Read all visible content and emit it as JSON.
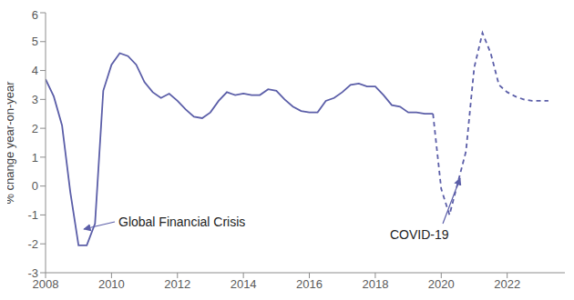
{
  "chart_data": {
    "type": "line",
    "y_label": "% change year-on-year",
    "annotations": [
      "Global Financial Crisis",
      "COVID-19"
    ],
    "x": [
      2008,
      2008.25,
      2008.5,
      2008.75,
      2009,
      2009.25,
      2009.5,
      2009.75,
      2010,
      2010.25,
      2010.5,
      2010.75,
      2011,
      2011.25,
      2011.5,
      2011.75,
      2012,
      2012.25,
      2012.5,
      2012.75,
      2013,
      2013.25,
      2013.5,
      2013.75,
      2014,
      2014.25,
      2014.5,
      2014.75,
      2015,
      2015.25,
      2015.5,
      2015.75,
      2016,
      2016.25,
      2016.5,
      2016.75,
      2017,
      2017.25,
      2017.5,
      2017.75,
      2018,
      2018.25,
      2018.5,
      2018.75,
      2019,
      2019.25,
      2019.5,
      2019.75,
      2020,
      2020.25,
      2020.5,
      2020.75,
      2021,
      2021.25,
      2021.5,
      2021.75,
      2022,
      2022.25,
      2022.5,
      2022.75,
      2023,
      2023.25
    ],
    "series": [
      {
        "color": "#5b5ea8",
        "line_style": "solid",
        "values": [
          3.7,
          3.1,
          2.1,
          -0.2,
          -2.05,
          -2.05,
          -1.3,
          3.3,
          4.2,
          4.6,
          4.5,
          4.2,
          3.6,
          3.25,
          3.05,
          3.2,
          2.95,
          2.65,
          2.4,
          2.35,
          2.55,
          2.95,
          3.25,
          3.15,
          3.2,
          3.15,
          3.15,
          3.35,
          3.3,
          3.0,
          2.75,
          2.6,
          2.55,
          2.55,
          2.95,
          3.05,
          3.25,
          3.5,
          3.55,
          3.45,
          3.45,
          3.15,
          2.8,
          2.75,
          2.55,
          2.55,
          2.5,
          2.5,
          null,
          null,
          null,
          null,
          null,
          null,
          null,
          null,
          null,
          null,
          null,
          null,
          null,
          null
        ]
      },
      {
        "color": "#5b5ea8",
        "line_style": "dashed",
        "values": [
          null,
          null,
          null,
          null,
          null,
          null,
          null,
          null,
          null,
          null,
          null,
          null,
          null,
          null,
          null,
          null,
          null,
          null,
          null,
          null,
          null,
          null,
          null,
          null,
          null,
          null,
          null,
          null,
          null,
          null,
          null,
          null,
          null,
          null,
          null,
          null,
          null,
          null,
          null,
          null,
          null,
          null,
          null,
          null,
          null,
          null,
          null,
          2.5,
          -0.1,
          -1.0,
          0.1,
          1.2,
          4.1,
          5.3,
          4.6,
          3.5,
          3.25,
          3.1,
          3.0,
          2.95,
          2.95,
          2.95
        ]
      }
    ],
    "xlim": [
      2008,
      2023.75
    ],
    "xticks": [
      2008,
      2010,
      2012,
      2014,
      2016,
      2018,
      2020,
      2022
    ],
    "ylim": [
      -3,
      6
    ],
    "yticks": [
      -3,
      -2,
      -1,
      0,
      1,
      2,
      3,
      4,
      5,
      6
    ],
    "grid": false
  }
}
